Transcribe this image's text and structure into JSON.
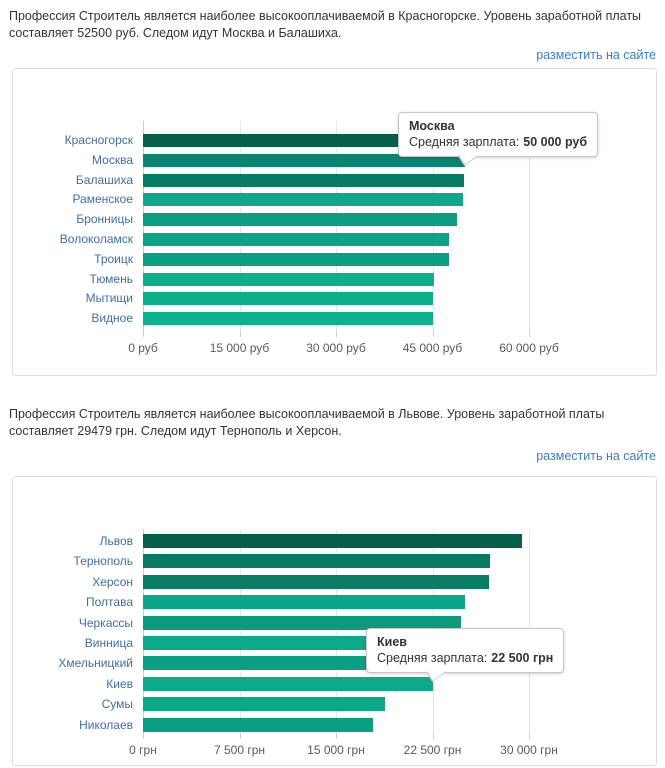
{
  "page": {
    "background": "#ffffff",
    "link_color": "#3b7dc3",
    "text_color": "#333333"
  },
  "sections": [
    {
      "description": "Профессия Строитель является наиболее высокооплачиваемой в Красногорске. Уровень заработной платы составляет 52500 руб. Следом идут Москва и Балашиха.",
      "link_label": "разместить на сайте",
      "chart_data": {
        "type": "bar",
        "orientation": "horizontal",
        "categories": [
          "Красногорск",
          "Москва",
          "Балашиха",
          "Раменское",
          "Бронницы",
          "Волоколамск",
          "Троицк",
          "Тюмень",
          "Мытищи",
          "Видное"
        ],
        "values": [
          52500,
          50000,
          49900,
          49700,
          48800,
          47600,
          47500,
          45200,
          45100,
          45000
        ],
        "unit": "руб",
        "xlim": [
          0,
          60000
        ],
        "x_tick_values": [
          0,
          15000,
          30000,
          45000,
          60000
        ],
        "x_tick_labels": [
          "0 руб",
          "15 000 руб",
          "30 000 руб",
          "45 000 руб",
          "60 000 руб"
        ],
        "bar_colors": [
          "#07604a",
          "#0b8571",
          "#077c63",
          "#0ca98a",
          "#0a9d80",
          "#0aa384",
          "#0aa182",
          "#0cb08d",
          "#0caf8c",
          "#0cb08d"
        ],
        "category_label_color": "#3d6fa5",
        "grid": true,
        "legend": "none",
        "tooltip": {
          "city": "Москва",
          "label": "Средняя зарплата:",
          "value": "50 000 руб"
        }
      }
    },
    {
      "description": "Профессия Строитель является наиболее высокооплачиваемой в Львове. Уровень заработной платы составляет 29479 грн. Следом идут Тернополь и Херсон.",
      "link_label": "разместить на сайте",
      "chart_data": {
        "type": "bar",
        "orientation": "horizontal",
        "categories": [
          "Львов",
          "Тернополь",
          "Херсон",
          "Полтава",
          "Черкассы",
          "Винница",
          "Хмельницкий",
          "Киев",
          "Сумы",
          "Николаев"
        ],
        "values": [
          29479,
          27000,
          26900,
          25000,
          24700,
          24000,
          23000,
          22500,
          18800,
          17900
        ],
        "unit": "грн",
        "xlim": [
          0,
          30000
        ],
        "x_tick_values": [
          0,
          7500,
          15000,
          22500,
          30000
        ],
        "x_tick_labels": [
          "0 грн",
          "7 500 грн",
          "15 000 грн",
          "22 500 грн",
          "30 000 грн"
        ],
        "bar_colors": [
          "#07604a",
          "#077c63",
          "#077d64",
          "#0ba687",
          "#0a9b7e",
          "#0caa8b",
          "#0aa082",
          "#0caa8b",
          "#0ba888",
          "#0a9f82"
        ],
        "category_label_color": "#3d6fa5",
        "grid": true,
        "legend": "none",
        "tooltip": {
          "city": "Киев",
          "label": "Средняя зарплата:",
          "value": "22 500 грн"
        }
      }
    }
  ]
}
